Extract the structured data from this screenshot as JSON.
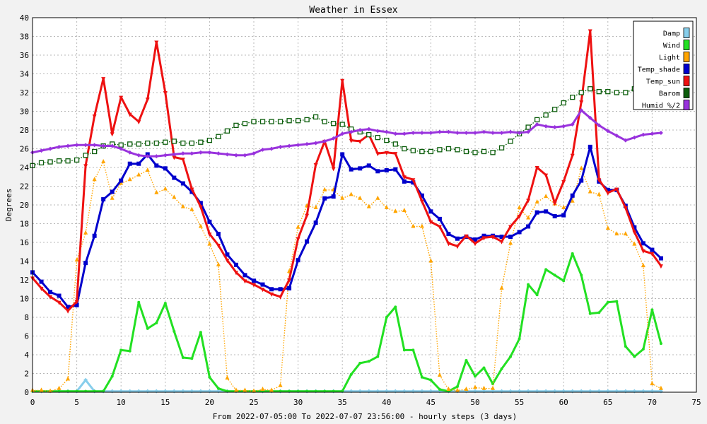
{
  "chart_data": {
    "type": "line",
    "title": "Weather in Essex",
    "xlabel": "From 2022-07-05:00 To 2022-07-07 23:56:00 - hourly steps (3 days)",
    "ylabel": "Degrees",
    "xlim": [
      0,
      75
    ],
    "ylim": [
      0,
      40
    ],
    "x_ticks": [
      0,
      5,
      10,
      15,
      20,
      25,
      30,
      35,
      40,
      45,
      50,
      55,
      60,
      65,
      70,
      75
    ],
    "y_ticks": [
      0,
      2,
      4,
      6,
      8,
      10,
      12,
      14,
      16,
      18,
      20,
      22,
      24,
      26,
      28,
      30,
      32,
      34,
      36,
      38,
      40
    ],
    "grid": true,
    "legend_position": "top-right",
    "series": [
      {
        "name": "Damp",
        "color": "#87ceeb",
        "marker": "diamond",
        "dash": "solid",
        "values": [
          0.1,
          0.1,
          0.1,
          0.1,
          0.1,
          0.1,
          1.3,
          0.1,
          0.1,
          0.1,
          0.1,
          0.1,
          0.1,
          0.1,
          0.1,
          0.1,
          0.1,
          0.1,
          0.1,
          0.1,
          0.1,
          0.1,
          0.1,
          0.1,
          0.1,
          0.1,
          0.1,
          0.1,
          0.1,
          0.1,
          0.1,
          0.1,
          0.1,
          0.1,
          0.1,
          0.1,
          0.1,
          0.1,
          0.1,
          0.1,
          0.1,
          0.1,
          0.1,
          0.1,
          0.1,
          0.1,
          0.1,
          0.1,
          0.1,
          0.1,
          0.1,
          0.1,
          0.1,
          0.1,
          0.1,
          0.1,
          0.1,
          0.1,
          0.1,
          0.1,
          0.1,
          0.1,
          0.1,
          0.1,
          0.1,
          0.1,
          0.1,
          0.1,
          0.1,
          0.1,
          0.1,
          0.1
        ]
      },
      {
        "name": "Wind",
        "color": "#22e022",
        "marker": "dot",
        "dash": "solid",
        "values": [
          0.1,
          0.1,
          0.1,
          0.1,
          0.1,
          0.1,
          0.1,
          0.1,
          0.1,
          1.7,
          4.5,
          4.4,
          9.6,
          6.8,
          7.4,
          9.5,
          6.5,
          3.7,
          3.6,
          6.4,
          1.6,
          0.4,
          0.1,
          0.1,
          0.1,
          0.1,
          0.1,
          0.1,
          0.1,
          0.1,
          0.1,
          0.1,
          0.1,
          0.1,
          0.1,
          0.1,
          1.9,
          3.1,
          3.3,
          3.8,
          8.0,
          9.1,
          4.5,
          4.5,
          1.6,
          1.3,
          0.3,
          0.1,
          0.6,
          3.4,
          1.7,
          2.6,
          0.9,
          2.5,
          3.8,
          5.7,
          11.5,
          10.4,
          13.1,
          12.5,
          11.9,
          14.8,
          12.5,
          8.4,
          8.5,
          9.6,
          9.7,
          4.9,
          3.8,
          4.6,
          8.8,
          5.2
        ]
      },
      {
        "name": "Light",
        "color": "#ffa500",
        "marker": "triangle-up",
        "dash": "dotted",
        "values": [
          0.2,
          0.2,
          0.1,
          0.4,
          1.4,
          14.1,
          17.0,
          22.7,
          24.6,
          20.7,
          22.3,
          22.7,
          23.2,
          23.7,
          21.3,
          21.7,
          20.8,
          19.8,
          19.5,
          17.7,
          15.8,
          13.6,
          1.5,
          0.2,
          0.2,
          0.1,
          0.3,
          0.2,
          0.7,
          12.9,
          17.6,
          19.9,
          19.7,
          21.6,
          21.6,
          20.7,
          21.1,
          20.7,
          19.8,
          20.7,
          19.7,
          19.3,
          19.4,
          17.7,
          17.7,
          14.0,
          1.8,
          0.3,
          0.2,
          0.3,
          0.5,
          0.4,
          0.4,
          11.1,
          15.9,
          19.7,
          18.6,
          20.3,
          20.9,
          20.1,
          19.7,
          20.4,
          23.9,
          21.4,
          21.1,
          17.5,
          16.9,
          16.9,
          15.8,
          13.5,
          0.9,
          0.4
        ]
      },
      {
        "name": "Temp_shade",
        "color": "#0000cc",
        "marker": "square",
        "dash": "solid",
        "values": [
          12.8,
          11.8,
          10.7,
          10.3,
          9.1,
          9.3,
          13.8,
          16.7,
          20.6,
          21.4,
          22.6,
          24.4,
          24.4,
          25.4,
          24.2,
          23.9,
          22.9,
          22.3,
          21.4,
          20.2,
          18.2,
          16.9,
          14.7,
          13.6,
          12.5,
          11.9,
          11.5,
          11.0,
          11.0,
          11.1,
          14.1,
          16.1,
          18.1,
          20.7,
          20.9,
          25.4,
          23.8,
          23.9,
          24.2,
          23.6,
          23.7,
          23.8,
          22.5,
          22.4,
          21.0,
          19.3,
          18.5,
          16.9,
          16.4,
          16.6,
          16.3,
          16.7,
          16.7,
          16.6,
          16.6,
          17.1,
          17.7,
          19.2,
          19.3,
          18.8,
          18.9,
          21.0,
          22.6,
          26.2,
          22.5,
          21.6,
          21.6,
          19.9,
          17.6,
          15.9,
          15.2,
          14.3
        ]
      },
      {
        "name": "Temp_sun",
        "color": "#ee1111",
        "marker": "triangle-down",
        "dash": "solid",
        "values": [
          12.2,
          11.1,
          10.2,
          9.6,
          8.7,
          9.7,
          24.2,
          29.5,
          33.5,
          27.6,
          31.5,
          29.7,
          28.9,
          31.3,
          37.4,
          32.0,
          25.1,
          24.9,
          21.7,
          19.8,
          16.9,
          15.7,
          14.1,
          12.8,
          11.9,
          11.5,
          11.0,
          10.5,
          10.2,
          12.0,
          16.4,
          18.9,
          24.3,
          26.8,
          23.9,
          33.3,
          26.9,
          26.8,
          27.5,
          25.5,
          25.6,
          25.5,
          23.0,
          22.7,
          20.4,
          18.2,
          17.7,
          15.9,
          15.6,
          16.7,
          15.9,
          16.5,
          16.6,
          16.1,
          17.7,
          18.8,
          20.5,
          24.0,
          23.2,
          20.2,
          22.5,
          25.3,
          31.0,
          38.6,
          22.7,
          21.3,
          21.7,
          19.7,
          17.1,
          15.1,
          14.8,
          13.5
        ]
      },
      {
        "name": "Barom",
        "color": "#0b5d0b",
        "marker": "square-open",
        "dash": "dotted",
        "values": [
          24.2,
          24.5,
          24.6,
          24.7,
          24.7,
          24.8,
          25.3,
          25.7,
          26.3,
          26.5,
          26.4,
          26.5,
          26.5,
          26.6,
          26.6,
          26.7,
          26.8,
          26.6,
          26.6,
          26.7,
          26.9,
          27.3,
          27.9,
          28.5,
          28.7,
          28.9,
          28.9,
          28.9,
          28.9,
          29.0,
          29.0,
          29.1,
          29.4,
          28.9,
          28.7,
          28.6,
          28.1,
          27.8,
          27.5,
          27.2,
          26.9,
          26.5,
          26.0,
          25.8,
          25.7,
          25.7,
          25.9,
          26.0,
          25.9,
          25.7,
          25.6,
          25.7,
          25.6,
          26.1,
          26.8,
          27.6,
          28.3,
          29.1,
          29.6,
          30.2,
          30.9,
          31.5,
          32.0,
          32.4,
          32.1,
          32.1,
          32.0,
          32.0,
          32.4,
          null,
          null,
          null
        ]
      },
      {
        "name": "Humid_%/2",
        "color": "#9933dd",
        "marker": "diamond",
        "dash": "solid",
        "values": [
          25.6,
          25.8,
          26.0,
          26.2,
          26.3,
          26.4,
          26.4,
          26.4,
          26.3,
          26.3,
          26.0,
          25.6,
          25.3,
          25.2,
          25.2,
          25.3,
          25.4,
          25.5,
          25.5,
          25.6,
          25.6,
          25.5,
          25.4,
          25.3,
          25.3,
          25.5,
          25.9,
          26.0,
          26.2,
          26.3,
          26.4,
          26.5,
          26.6,
          26.8,
          27.1,
          27.6,
          27.8,
          28.0,
          28.1,
          27.9,
          27.8,
          27.6,
          27.6,
          27.7,
          27.7,
          27.7,
          27.8,
          27.8,
          27.7,
          27.7,
          27.7,
          27.8,
          27.7,
          27.7,
          27.8,
          27.7,
          27.8,
          28.6,
          28.4,
          28.3,
          28.4,
          28.6,
          30.1,
          29.3,
          28.5,
          27.9,
          27.4,
          26.9,
          27.2,
          27.5,
          27.6,
          27.7
        ]
      }
    ]
  }
}
